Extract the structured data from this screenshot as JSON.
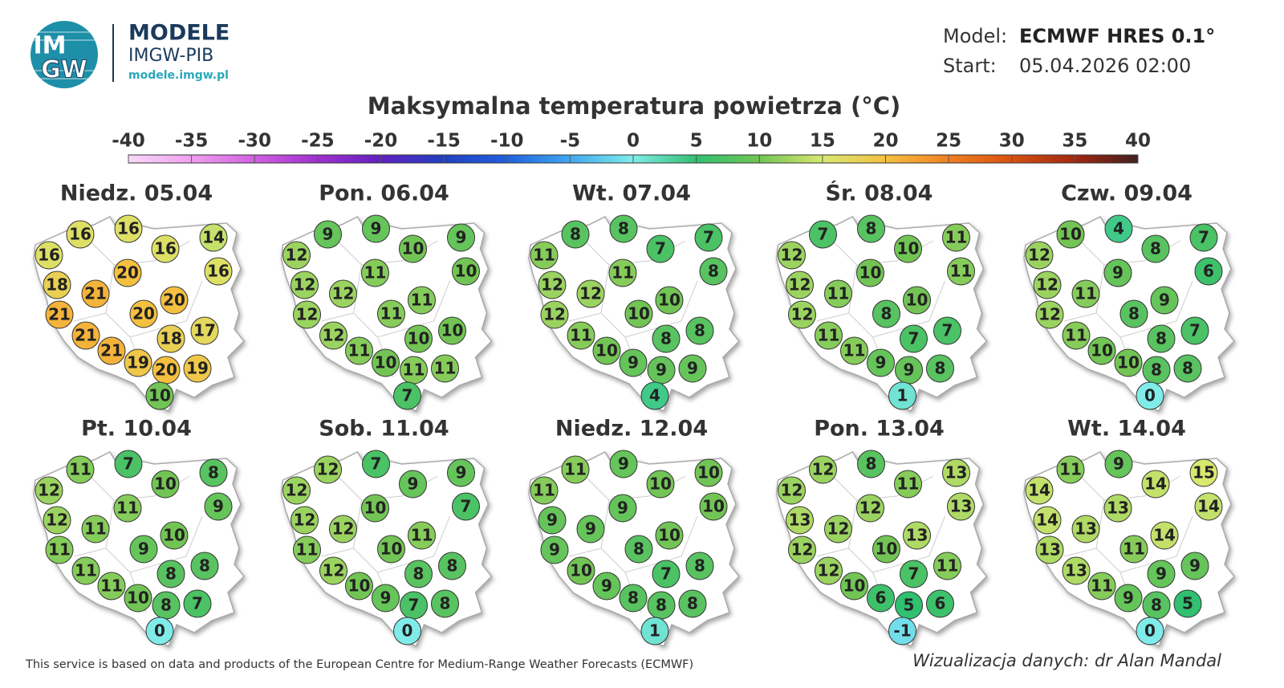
{
  "header": {
    "logo_text": [
      "IM",
      "GW"
    ],
    "brand": "MODELE",
    "org": "IMGW-PIB",
    "url": "modele.imgw.pl",
    "model_label": "Model:",
    "model": "ECMWF HRES 0.1°",
    "start_label": "Start:",
    "start": "05.04.2026 02:00"
  },
  "title": "Maksymalna temperatura powietrza (°C)",
  "colorbar": {
    "ticks": [
      -40,
      -35,
      -30,
      -25,
      -20,
      -15,
      -10,
      -5,
      0,
      5,
      10,
      15,
      20,
      25,
      30,
      35,
      40
    ],
    "colors": [
      "#f8d8f8",
      "#f0a0f0",
      "#d060e0",
      "#a030d0",
      "#6020c0",
      "#2040c0",
      "#2060e0",
      "#40a8f0",
      "#80ecea",
      "#30c070",
      "#72c555",
      "#d8e870",
      "#f5c040",
      "#f08020",
      "#d85010",
      "#a02810",
      "#402020"
    ]
  },
  "maps": [
    {
      "title": "Niedz. 05.04",
      "values": [
        16,
        16,
        16,
        16,
        14,
        16,
        18,
        21,
        20,
        21,
        21,
        20,
        20,
        18,
        17,
        21,
        19,
        20,
        19,
        10
      ]
    },
    {
      "title": "Pon. 06.04",
      "values": [
        12,
        9,
        9,
        10,
        9,
        10,
        12,
        12,
        11,
        12,
        12,
        11,
        11,
        10,
        10,
        11,
        10,
        11,
        11,
        7
      ]
    },
    {
      "title": "Wt. 07.04",
      "values": [
        11,
        8,
        8,
        7,
        7,
        8,
        12,
        12,
        11,
        12,
        11,
        10,
        10,
        8,
        8,
        10,
        9,
        9,
        9,
        4
      ]
    },
    {
      "title": "Śr. 08.04",
      "values": [
        12,
        7,
        8,
        10,
        11,
        11,
        12,
        11,
        10,
        12,
        11,
        8,
        10,
        7,
        7,
        11,
        9,
        9,
        8,
        1
      ]
    },
    {
      "title": "Czw. 09.04",
      "values": [
        12,
        10,
        4,
        8,
        7,
        6,
        12,
        11,
        9,
        12,
        11,
        8,
        9,
        8,
        7,
        10,
        10,
        8,
        8,
        0
      ]
    },
    {
      "title": "Pt. 10.04",
      "values": [
        12,
        11,
        7,
        10,
        8,
        9,
        12,
        11,
        11,
        11,
        11,
        9,
        10,
        8,
        8,
        11,
        10,
        8,
        7,
        0
      ]
    },
    {
      "title": "Sob. 11.04",
      "values": [
        12,
        12,
        7,
        9,
        9,
        7,
        12,
        12,
        10,
        11,
        12,
        10,
        11,
        8,
        8,
        10,
        9,
        7,
        8,
        0
      ]
    },
    {
      "title": "Niedz. 12.04",
      "values": [
        11,
        11,
        9,
        10,
        10,
        10,
        9,
        9,
        9,
        9,
        10,
        8,
        10,
        7,
        8,
        9,
        8,
        8,
        8,
        1
      ]
    },
    {
      "title": "Pon. 13.04",
      "values": [
        12,
        12,
        8,
        11,
        13,
        13,
        13,
        12,
        12,
        12,
        12,
        10,
        13,
        7,
        11,
        10,
        6,
        5,
        6,
        -1
      ]
    },
    {
      "title": "Wt. 14.04",
      "values": [
        14,
        11,
        9,
        14,
        15,
        14,
        14,
        13,
        13,
        13,
        13,
        11,
        14,
        9,
        9,
        11,
        9,
        8,
        5,
        0
      ]
    }
  ],
  "footer": {
    "source": "This service is based on data and products of the European Centre for Medium-Range Weather Forecasts (ECMWF)",
    "credit": "Wizualizacja danych: dr Alan Mandal"
  }
}
